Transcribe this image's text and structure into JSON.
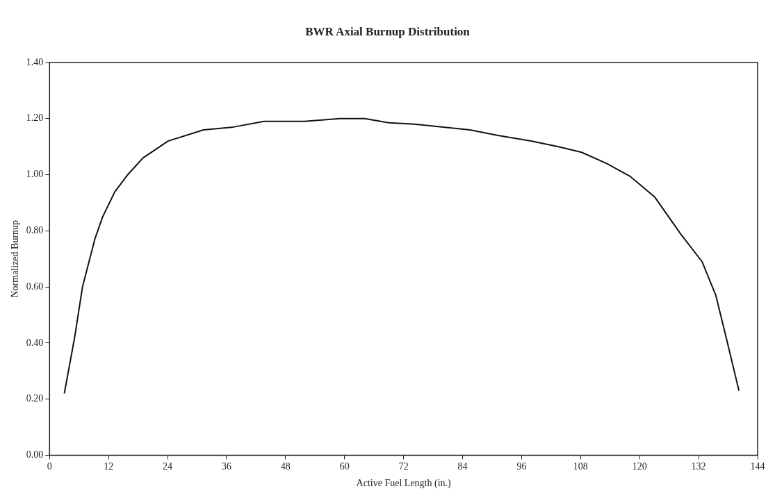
{
  "chart_data": {
    "type": "line",
    "title": "BWR Axial Burnup Distribution",
    "xlabel": "Active Fuel Length (in.)",
    "ylabel": "Normalized Burnup",
    "x": [
      3,
      5.1,
      6.7,
      9.2,
      10.8,
      13.3,
      15.9,
      19,
      24.1,
      31.3,
      37.4,
      43.6,
      51.8,
      59,
      64.1,
      69,
      74.2,
      85.5,
      91.2,
      97.9,
      103.5,
      108.2,
      113.3,
      118,
      123.1,
      128.3,
      132.7,
      135.5,
      137.6,
      140.2
    ],
    "series": [
      {
        "color": "#111111",
        "values": [
          0.22,
          0.42,
          0.6,
          0.77,
          0.85,
          0.94,
          1.0,
          1.06,
          1.12,
          1.16,
          1.17,
          1.19,
          1.19,
          1.2,
          1.2,
          1.185,
          1.18,
          1.16,
          1.14,
          1.12,
          1.1,
          1.08,
          1.04,
          0.995,
          0.92,
          0.79,
          0.69,
          0.57,
          0.42,
          0.23
        ]
      }
    ],
    "xlim": [
      0,
      144
    ],
    "xticks": [
      0,
      12,
      24,
      36,
      48,
      60,
      72,
      84,
      96,
      108,
      120,
      132,
      144
    ],
    "ylim": [
      0,
      1.4
    ],
    "yticks": [
      {
        "value": 0,
        "label": "0.00"
      },
      {
        "value": 0.2,
        "label": "0.20"
      },
      {
        "value": 0.4,
        "label": "0.40"
      },
      {
        "value": 0.6,
        "label": "0.60"
      },
      {
        "value": 0.8,
        "label": "0.80"
      },
      {
        "value": 1.0,
        "label": "1.00"
      },
      {
        "value": 1.2,
        "label": "1.20"
      },
      {
        "value": 1.4,
        "label": "1.40"
      }
    ],
    "grid": false,
    "legend": false,
    "marker": "none",
    "line_style": "solid"
  }
}
